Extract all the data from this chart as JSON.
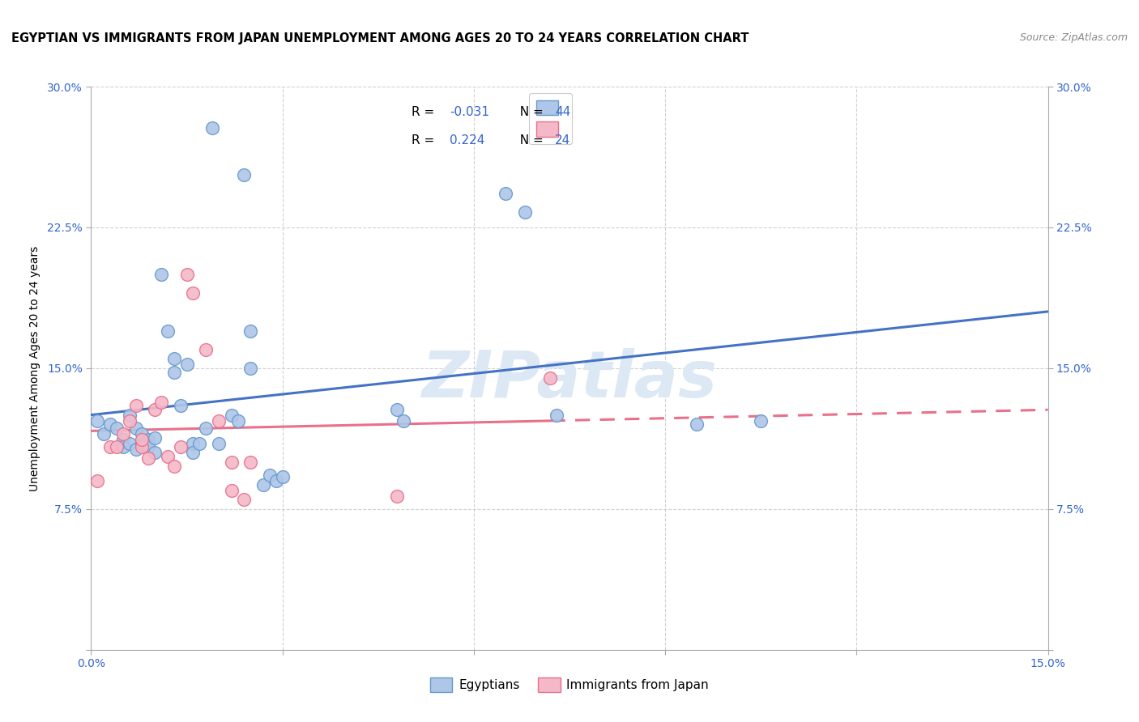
{
  "title": "EGYPTIAN VS IMMIGRANTS FROM JAPAN UNEMPLOYMENT AMONG AGES 20 TO 24 YEARS CORRELATION CHART",
  "source": "Source: ZipAtlas.com",
  "ylabel": "Unemployment Among Ages 20 to 24 years",
  "xlim": [
    0.0,
    0.15
  ],
  "ylim": [
    0.0,
    0.3
  ],
  "xticks": [
    0.0,
    0.03,
    0.06,
    0.09,
    0.12,
    0.15
  ],
  "yticks": [
    0.0,
    0.075,
    0.15,
    0.225,
    0.3
  ],
  "ytick_labels": [
    "",
    "7.5%",
    "15.0%",
    "22.5%",
    "30.0%"
  ],
  "xtick_labels": [
    "0.0%",
    "",
    "",
    "",
    "",
    "15.0%"
  ],
  "blue_scatter": [
    [
      0.001,
      0.122
    ],
    [
      0.002,
      0.115
    ],
    [
      0.003,
      0.12
    ],
    [
      0.004,
      0.118
    ],
    [
      0.005,
      0.112
    ],
    [
      0.005,
      0.108
    ],
    [
      0.006,
      0.11
    ],
    [
      0.006,
      0.125
    ],
    [
      0.007,
      0.107
    ],
    [
      0.007,
      0.118
    ],
    [
      0.008,
      0.11
    ],
    [
      0.008,
      0.115
    ],
    [
      0.009,
      0.112
    ],
    [
      0.009,
      0.108
    ],
    [
      0.01,
      0.105
    ],
    [
      0.01,
      0.113
    ],
    [
      0.011,
      0.2
    ],
    [
      0.012,
      0.17
    ],
    [
      0.013,
      0.155
    ],
    [
      0.013,
      0.148
    ],
    [
      0.014,
      0.13
    ],
    [
      0.015,
      0.152
    ],
    [
      0.016,
      0.11
    ],
    [
      0.016,
      0.105
    ],
    [
      0.017,
      0.11
    ],
    [
      0.018,
      0.118
    ],
    [
      0.019,
      0.278
    ],
    [
      0.02,
      0.11
    ],
    [
      0.022,
      0.125
    ],
    [
      0.023,
      0.122
    ],
    [
      0.024,
      0.253
    ],
    [
      0.025,
      0.17
    ],
    [
      0.025,
      0.15
    ],
    [
      0.027,
      0.088
    ],
    [
      0.028,
      0.093
    ],
    [
      0.029,
      0.09
    ],
    [
      0.03,
      0.092
    ],
    [
      0.048,
      0.128
    ],
    [
      0.049,
      0.122
    ],
    [
      0.065,
      0.243
    ],
    [
      0.068,
      0.233
    ],
    [
      0.073,
      0.125
    ],
    [
      0.095,
      0.12
    ],
    [
      0.105,
      0.122
    ]
  ],
  "pink_scatter": [
    [
      0.001,
      0.09
    ],
    [
      0.003,
      0.108
    ],
    [
      0.004,
      0.108
    ],
    [
      0.005,
      0.115
    ],
    [
      0.006,
      0.122
    ],
    [
      0.007,
      0.13
    ],
    [
      0.008,
      0.108
    ],
    [
      0.008,
      0.112
    ],
    [
      0.009,
      0.102
    ],
    [
      0.01,
      0.128
    ],
    [
      0.011,
      0.132
    ],
    [
      0.012,
      0.103
    ],
    [
      0.013,
      0.098
    ],
    [
      0.014,
      0.108
    ],
    [
      0.015,
      0.2
    ],
    [
      0.016,
      0.19
    ],
    [
      0.018,
      0.16
    ],
    [
      0.02,
      0.122
    ],
    [
      0.022,
      0.085
    ],
    [
      0.022,
      0.1
    ],
    [
      0.024,
      0.08
    ],
    [
      0.025,
      0.1
    ],
    [
      0.048,
      0.082
    ],
    [
      0.072,
      0.145
    ]
  ],
  "blue_color": "#aec6e8",
  "pink_color": "#f4b8c8",
  "blue_edge_color": "#6699cc",
  "pink_edge_color": "#e8708a",
  "blue_line_color": "#4472c4",
  "pink_line_color": "#e8708a",
  "watermark": "ZIPatlas",
  "watermark_color": "#dde8f5",
  "grid_color": "#cccccc",
  "legend_labels": [
    "Egyptians",
    "Immigrants from Japan"
  ],
  "title_fontsize": 10.5,
  "axis_label_fontsize": 10,
  "tick_fontsize": 10,
  "right_tick_color": "#3366cc",
  "source_color": "#888888"
}
